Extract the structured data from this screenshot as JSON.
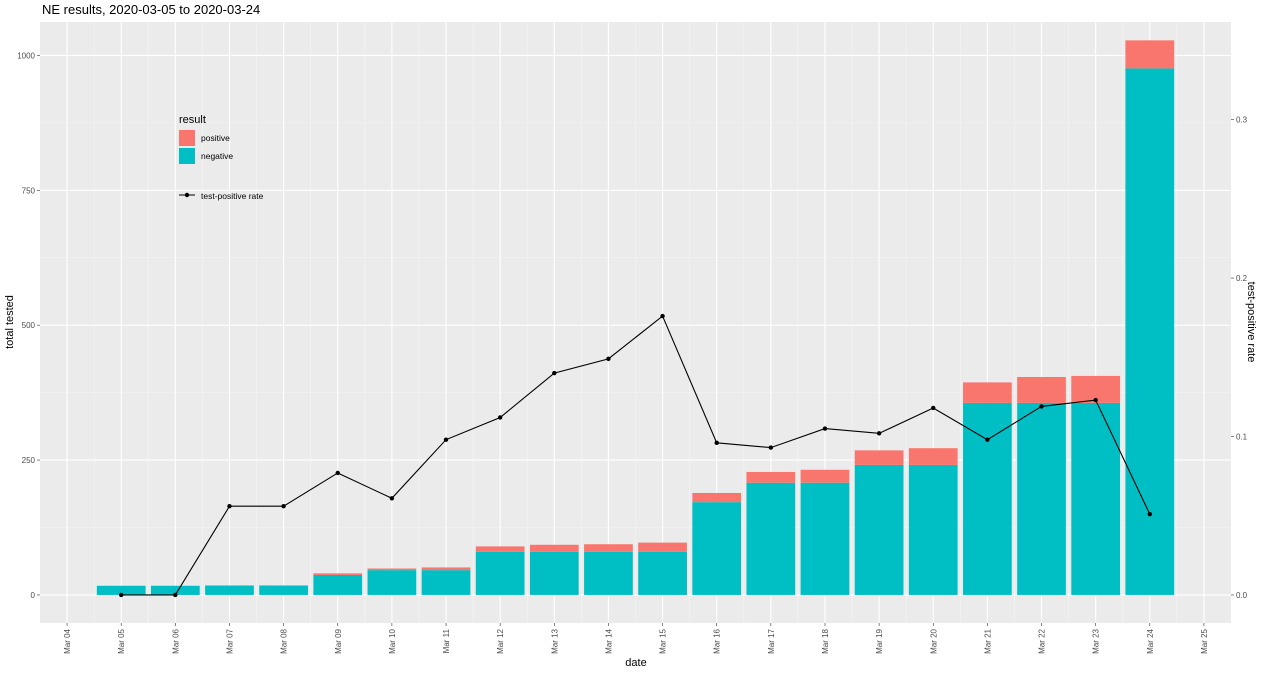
{
  "chart_data": {
    "type": "bar",
    "title": "NE results, 2020-03-05 to 2020-03-24",
    "xlabel": "date",
    "ylabel": "total tested",
    "y2label": "test-positive rate",
    "ylim": [
      -52,
      1062
    ],
    "y2lim": [
      -0.0177,
      0.3616
    ],
    "yticks": [
      0,
      250,
      500,
      750,
      1000
    ],
    "y2ticks": [
      0.0,
      0.1,
      0.2,
      0.3
    ],
    "y2ticklabels": [
      "0.0",
      "0.1",
      "0.2",
      "0.3"
    ],
    "xticks": [
      "Mar 04",
      "Mar 05",
      "Mar 06",
      "Mar 07",
      "Mar 08",
      "Mar 09",
      "Mar 10",
      "Mar 11",
      "Mar 12",
      "Mar 13",
      "Mar 14",
      "Mar 15",
      "Mar 16",
      "Mar 17",
      "Mar 18",
      "Mar 19",
      "Mar 20",
      "Mar 21",
      "Mar 22",
      "Mar 23",
      "Mar 24",
      "Mar 25"
    ],
    "categories": [
      "Mar 05",
      "Mar 06",
      "Mar 07",
      "Mar 08",
      "Mar 09",
      "Mar 10",
      "Mar 11",
      "Mar 12",
      "Mar 13",
      "Mar 14",
      "Mar 15",
      "Mar 16",
      "Mar 17",
      "Mar 18",
      "Mar 19",
      "Mar 20",
      "Mar 21",
      "Mar 22",
      "Mar 23",
      "Mar 24"
    ],
    "series": [
      {
        "name": "negative",
        "color": "#00BFC4",
        "values": [
          17,
          17,
          17,
          17,
          37,
          46,
          46,
          80,
          80,
          80,
          80,
          172,
          208,
          208,
          241,
          241,
          356,
          356,
          356,
          976
        ]
      },
      {
        "name": "positive",
        "color": "#F8766D",
        "values": [
          0,
          0,
          1,
          1,
          3,
          3,
          5,
          10,
          13,
          14,
          17,
          17,
          20,
          24,
          27,
          31,
          38,
          48,
          50,
          52
        ]
      },
      {
        "name": "test-positive rate",
        "type": "line",
        "color": "#000000",
        "values": [
          0.0,
          0.0,
          0.056,
          0.056,
          0.077,
          0.061,
          0.098,
          0.112,
          0.14,
          0.149,
          0.176,
          0.096,
          0.093,
          0.105,
          0.102,
          0.118,
          0.098,
          0.119,
          0.123,
          0.051
        ]
      }
    ],
    "grid": true,
    "legend": {
      "title": "result",
      "position": "top-left",
      "items": [
        "positive",
        "negative"
      ],
      "line_label": "test-positive rate"
    }
  }
}
